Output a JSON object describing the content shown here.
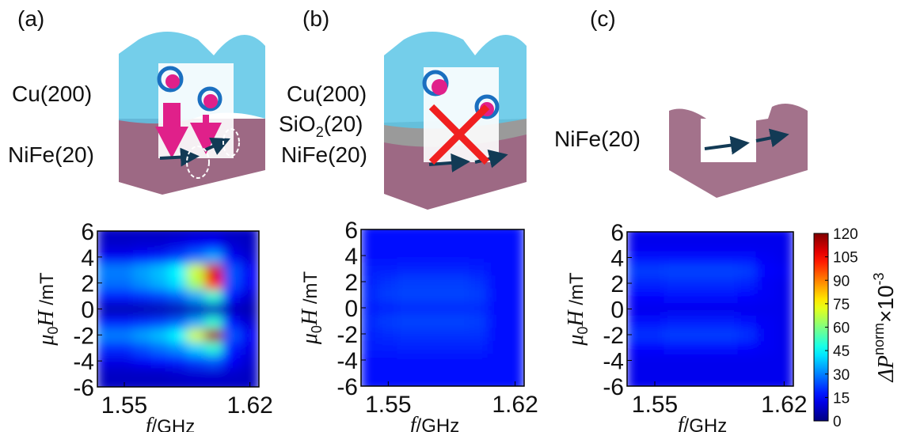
{
  "schematics": [
    {
      "label": "(a)",
      "layers": [
        "Cu(200)",
        "NiFe(20)"
      ]
    },
    {
      "label": "(b)",
      "layers": [
        "Cu(200)",
        {
          "base": "SiO",
          "sub": "2",
          "tail": "(20)"
        },
        "NiFe(20)"
      ]
    },
    {
      "label": "(c)",
      "layers": [
        "NiFe(20)"
      ]
    }
  ],
  "chart_data": [
    {
      "type": "heatmap",
      "colormap": "jet",
      "x": [
        1.54,
        1.55,
        1.56,
        1.57,
        1.58,
        1.59,
        1.6,
        1.61,
        1.62
      ],
      "y": [
        -6,
        -5,
        -4,
        -3,
        -2,
        -1,
        0,
        1,
        2,
        3,
        4,
        5,
        6
      ],
      "values": [
        [
          8,
          8,
          8,
          8,
          8,
          8,
          8,
          8,
          8
        ],
        [
          8,
          8,
          8,
          8,
          9,
          10,
          10,
          9,
          8
        ],
        [
          12,
          12,
          14,
          16,
          18,
          22,
          25,
          14,
          10
        ],
        [
          20,
          20,
          24,
          28,
          32,
          40,
          50,
          18,
          12
        ],
        [
          30,
          30,
          34,
          38,
          45,
          70,
          115,
          25,
          14
        ],
        [
          18,
          18,
          20,
          22,
          26,
          35,
          50,
          16,
          10
        ],
        [
          6,
          6,
          6,
          6,
          6,
          7,
          8,
          7,
          6
        ],
        [
          18,
          18,
          20,
          22,
          26,
          35,
          50,
          16,
          10
        ],
        [
          28,
          28,
          32,
          36,
          42,
          65,
          105,
          24,
          14
        ],
        [
          30,
          30,
          34,
          38,
          45,
          70,
          110,
          25,
          14
        ],
        [
          14,
          14,
          16,
          18,
          22,
          28,
          35,
          14,
          10
        ],
        [
          9,
          9,
          10,
          10,
          12,
          14,
          15,
          10,
          8
        ],
        [
          8,
          8,
          8,
          8,
          8,
          9,
          9,
          8,
          8
        ]
      ],
      "xlim": [
        1.535,
        1.625
      ],
      "ylim": [
        -6,
        6
      ],
      "xticks": [
        1.55,
        1.62
      ],
      "yticks": [
        -6,
        -4,
        -2,
        0,
        2,
        4,
        6
      ],
      "xlabel": [
        "f",
        "/GHz"
      ],
      "ylabel": [
        "μ",
        "0",
        "H",
        " /mT"
      ]
    },
    {
      "type": "heatmap",
      "colormap": "jet",
      "x": [
        1.54,
        1.55,
        1.56,
        1.57,
        1.58,
        1.59,
        1.6,
        1.61,
        1.62
      ],
      "y": [
        -6,
        -5,
        -4,
        -3,
        -2,
        -1,
        0,
        1,
        2,
        3,
        4,
        5,
        6
      ],
      "values": [
        [
          16,
          16,
          16,
          16,
          16,
          16,
          16,
          16,
          16
        ],
        [
          16,
          16,
          16,
          16,
          16,
          16,
          16,
          16,
          16
        ],
        [
          17,
          17,
          17,
          17,
          17,
          17,
          17,
          16,
          16
        ],
        [
          18,
          18,
          19,
          19,
          19,
          19,
          19,
          16,
          16
        ],
        [
          19,
          20,
          21,
          21,
          21,
          21,
          21,
          17,
          16
        ],
        [
          20,
          22,
          23,
          23,
          23,
          23,
          22,
          17,
          16
        ],
        [
          18,
          19,
          20,
          20,
          20,
          20,
          20,
          16,
          16
        ],
        [
          20,
          22,
          23,
          23,
          23,
          23,
          22,
          17,
          16
        ],
        [
          19,
          21,
          22,
          22,
          22,
          22,
          21,
          17,
          16
        ],
        [
          18,
          18,
          19,
          19,
          19,
          19,
          18,
          16,
          16
        ],
        [
          17,
          17,
          17,
          17,
          17,
          17,
          17,
          16,
          16
        ],
        [
          16,
          16,
          16,
          16,
          16,
          16,
          16,
          16,
          16
        ],
        [
          16,
          16,
          16,
          16,
          16,
          16,
          16,
          16,
          16
        ]
      ],
      "xlim": [
        1.535,
        1.625
      ],
      "ylim": [
        -6,
        6
      ],
      "xticks": [
        1.55,
        1.62
      ],
      "yticks": [
        -6,
        -4,
        -2,
        0,
        2,
        4,
        6
      ],
      "xlabel": [
        "f",
        "/GHz"
      ],
      "ylabel": [
        "μ",
        "0",
        "H",
        " /mT"
      ]
    },
    {
      "type": "heatmap",
      "colormap": "jet",
      "x": [
        1.54,
        1.55,
        1.56,
        1.57,
        1.58,
        1.59,
        1.6,
        1.61,
        1.62
      ],
      "y": [
        -6,
        -5,
        -4,
        -3,
        -2,
        -1,
        0,
        1,
        2,
        3,
        4,
        5,
        6
      ],
      "values": [
        [
          13,
          13,
          13,
          13,
          13,
          13,
          13,
          13,
          13
        ],
        [
          13,
          13,
          13,
          13,
          13,
          13,
          13,
          13,
          13
        ],
        [
          13,
          13,
          13,
          13,
          13,
          13,
          13,
          13,
          13
        ],
        [
          15,
          15,
          16,
          16,
          16,
          16,
          15,
          14,
          13
        ],
        [
          21,
          21,
          22,
          22,
          22,
          22,
          21,
          14,
          13
        ],
        [
          17,
          17,
          18,
          18,
          18,
          18,
          17,
          14,
          13
        ],
        [
          13,
          13,
          13,
          13,
          13,
          13,
          13,
          13,
          13
        ],
        [
          15,
          15,
          16,
          16,
          16,
          16,
          15,
          14,
          13
        ],
        [
          19,
          19,
          20,
          20,
          20,
          20,
          19,
          14,
          13
        ],
        [
          22,
          22,
          23,
          23,
          23,
          23,
          22,
          15,
          14
        ],
        [
          16,
          16,
          17,
          17,
          17,
          17,
          16,
          14,
          13
        ],
        [
          13,
          13,
          13,
          13,
          13,
          13,
          13,
          13,
          13
        ],
        [
          13,
          13,
          13,
          13,
          13,
          13,
          13,
          13,
          13
        ]
      ],
      "xlim": [
        1.535,
        1.625
      ],
      "ylim": [
        -6,
        6
      ],
      "xticks": [
        1.55,
        1.62
      ],
      "yticks": [
        -6,
        -4,
        -2,
        0,
        2,
        4,
        6
      ],
      "xlabel": [
        "f",
        "/GHz"
      ],
      "ylabel": [
        "μ",
        "0",
        "H",
        " /mT"
      ],
      "colorbar": {
        "lim": [
          0,
          120
        ],
        "ticks": [
          0,
          15,
          30,
          45,
          60,
          75,
          90,
          105,
          120
        ],
        "label": [
          "ΔP",
          "norm",
          "×10",
          "-3"
        ]
      }
    }
  ]
}
